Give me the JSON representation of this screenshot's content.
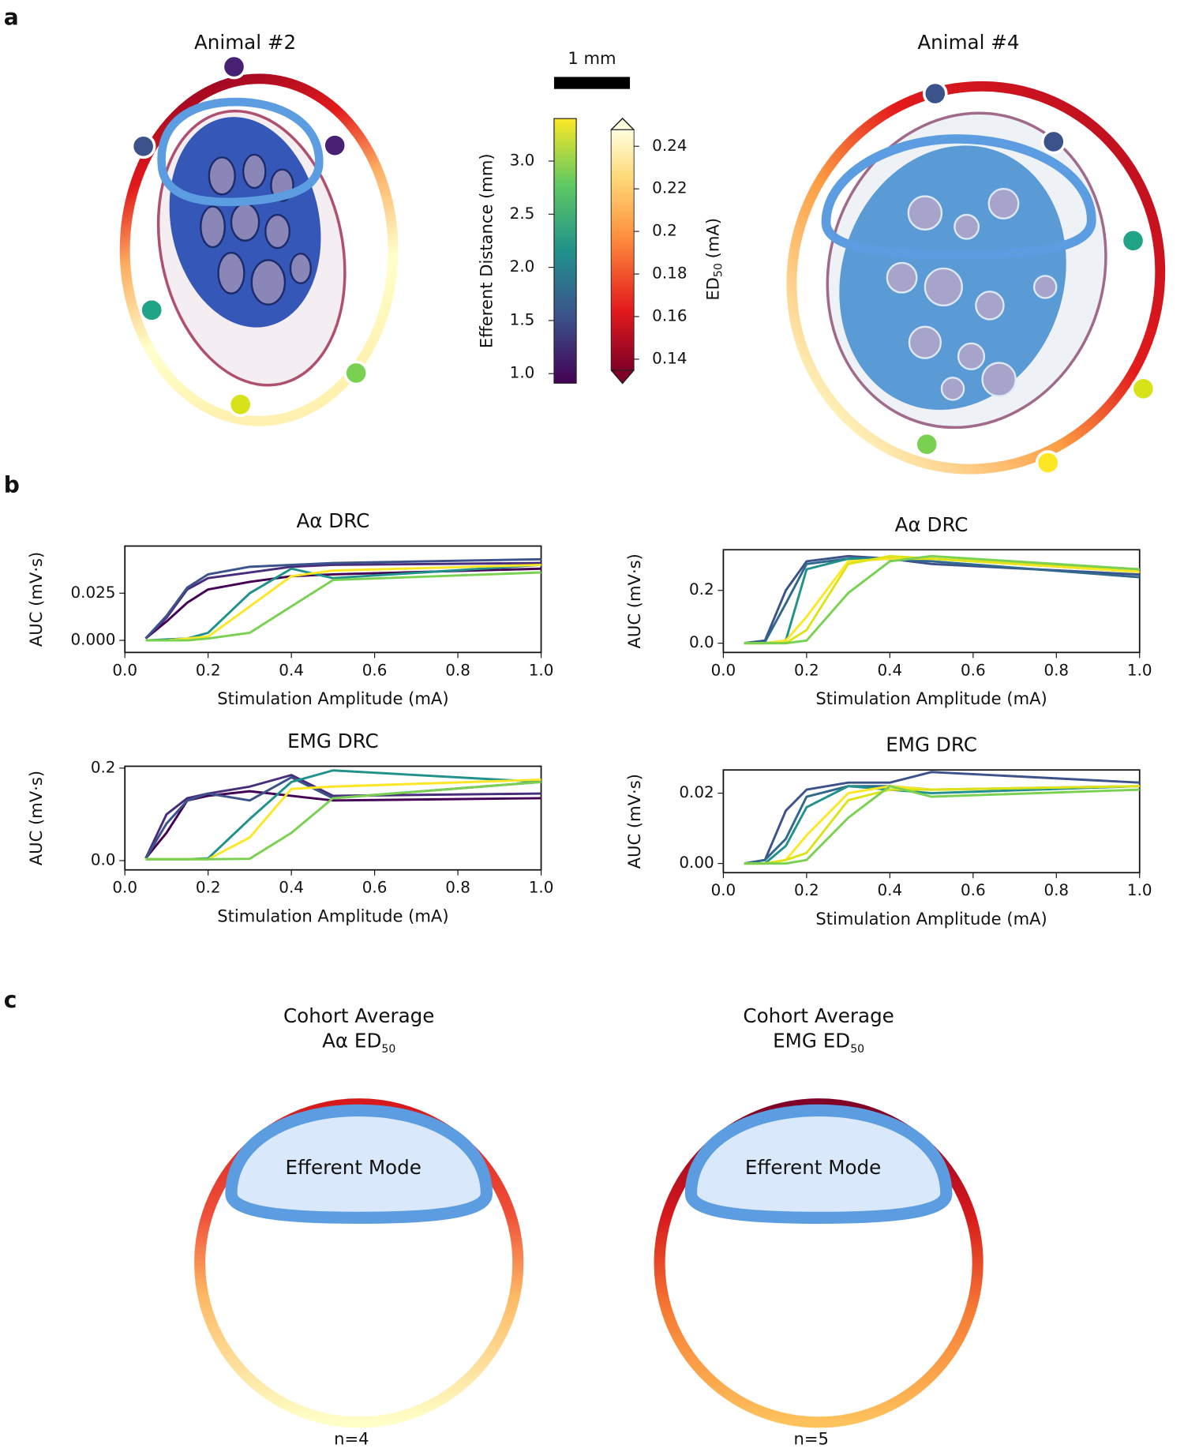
{
  "panel_labels": [
    "a",
    "b",
    "c"
  ],
  "panel_a": {
    "animals": [
      "Animal #2",
      "Animal #4"
    ],
    "scale_bar": "1 mm",
    "colorbars": [
      {
        "label": "Efferent Distance (mm)",
        "ylim": [
          0.91,
          3.4
        ],
        "ticks": [
          {
            "value": 1,
            "label": "1.0"
          },
          1.5,
          {
            "value": 2,
            "label": "2.0"
          },
          2.5,
          {
            "value": 3,
            "label": "3.0"
          }
        ]
      },
      {
        "label_main": "ED",
        "label_sub": "50",
        "label_unit": "(mA)",
        "ylim": [
          0.1348,
          0.2478
        ],
        "ticks": [
          0.14,
          0.16,
          0.18,
          0.2,
          0.22,
          0.24
        ]
      }
    ]
  },
  "chart_data": [
    {
      "type": "line",
      "title": "Aα DRC",
      "xlabel": "Stimulation Amplitude (mA)",
      "ylabel": "AUC (mV·s)",
      "x": [
        0.05,
        0.1,
        0.15,
        0.2,
        0.3,
        0.4,
        0.5,
        1.0
      ],
      "xlim": [
        0,
        1
      ],
      "ylim": [
        -0.0064,
        0.05
      ],
      "xticks": [
        {
          "value": 0,
          "label": "0.0"
        },
        0.2,
        0.4,
        0.6,
        0.8,
        {
          "value": 1,
          "label": "1.0"
        }
      ],
      "yticks": [
        {
          "value": 0,
          "label": "0.000"
        },
        0.025
      ],
      "series": [
        {
          "color": "#440154",
          "values": [
            0.001,
            0.01,
            0.02,
            0.027,
            0.031,
            0.034,
            0.035,
            0.038
          ]
        },
        {
          "color": "#472d7b",
          "values": [
            0.001,
            0.012,
            0.027,
            0.033,
            0.036,
            0.039,
            0.04,
            0.041
          ]
        },
        {
          "color": "#3b528b",
          "values": [
            0.001,
            0.013,
            0.028,
            0.035,
            0.039,
            0.04,
            0.041,
            0.043
          ]
        },
        {
          "color": "#21918c",
          "values": [
            0,
            0.0005,
            0.001,
            0.004,
            0.025,
            0.038,
            0.033,
            0.04
          ]
        },
        {
          "color": "#fde725",
          "values": [
            0,
            0,
            0.001,
            0.002,
            0.018,
            0.034,
            0.037,
            0.04
          ]
        },
        {
          "color": "#7ad151",
          "values": [
            0,
            0,
            0,
            0.001,
            0.004,
            0.018,
            0.032,
            0.036
          ]
        }
      ]
    },
    {
      "type": "line",
      "title": "Aα DRC",
      "xlabel": "Stimulation Amplitude (mA)",
      "ylabel": "AUC (mV·s)",
      "x": [
        0.05,
        0.1,
        0.15,
        0.2,
        0.3,
        0.4,
        0.5,
        1.0
      ],
      "xlim": [
        0,
        1
      ],
      "ylim": [
        -0.035,
        0.354
      ],
      "xticks": [
        {
          "value": 0,
          "label": "0.0"
        },
        0.2,
        0.4,
        0.6,
        0.8,
        {
          "value": 1,
          "label": "1.0"
        }
      ],
      "yticks": [
        {
          "value": 0,
          "label": "0.0"
        },
        0.2
      ],
      "series": [
        {
          "color": "#3b528b",
          "values": [
            0,
            0.01,
            0.2,
            0.31,
            0.33,
            0.32,
            0.3,
            0.26
          ]
        },
        {
          "color": "#31688e",
          "values": [
            0,
            0.005,
            0.15,
            0.3,
            0.32,
            0.32,
            0.31,
            0.25
          ]
        },
        {
          "color": "#21918c",
          "values": [
            0,
            0,
            0.01,
            0.28,
            0.32,
            0.32,
            0.32,
            0.27
          ]
        },
        {
          "color": "#fde725",
          "values": [
            0,
            0,
            0.01,
            0.1,
            0.31,
            0.32,
            0.32,
            0.27
          ]
        },
        {
          "color": "#dde318",
          "values": [
            0,
            0,
            0,
            0.05,
            0.3,
            0.33,
            0.32,
            0.28
          ]
        },
        {
          "color": "#7ad151",
          "values": [
            0,
            0,
            0,
            0.01,
            0.19,
            0.31,
            0.33,
            0.28
          ]
        }
      ]
    },
    {
      "type": "line",
      "title": "EMG DRC",
      "xlabel": "Stimulation Amplitude (mA)",
      "ylabel": "AUC (mV·s)",
      "x": [
        0.05,
        0.1,
        0.15,
        0.2,
        0.3,
        0.4,
        0.5,
        1.0
      ],
      "xlim": [
        0,
        1
      ],
      "ylim": [
        -0.02,
        0.204
      ],
      "xticks": [
        {
          "value": 0,
          "label": "0.0"
        },
        0.2,
        0.4,
        0.6,
        0.8,
        {
          "value": 1,
          "label": "1.0"
        }
      ],
      "yticks": [
        {
          "value": 0,
          "label": "0.0"
        },
        0.2
      ],
      "series": [
        {
          "color": "#440154",
          "values": [
            0.005,
            0.06,
            0.13,
            0.14,
            0.15,
            0.14,
            0.13,
            0.135
          ]
        },
        {
          "color": "#472d7b",
          "values": [
            0.005,
            0.1,
            0.135,
            0.145,
            0.16,
            0.185,
            0.14,
            0.145
          ]
        },
        {
          "color": "#3b528b",
          "values": [
            0.005,
            0.08,
            0.13,
            0.145,
            0.13,
            0.18,
            0.135,
            0.17
          ]
        },
        {
          "color": "#21918c",
          "values": [
            0.003,
            0.003,
            0.003,
            0.005,
            0.09,
            0.17,
            0.195,
            0.17
          ]
        },
        {
          "color": "#fde725",
          "values": [
            0.003,
            0.003,
            0.003,
            0.003,
            0.05,
            0.155,
            0.16,
            0.175
          ]
        },
        {
          "color": "#7ad151",
          "values": [
            0.003,
            0.003,
            0.003,
            0.003,
            0.004,
            0.06,
            0.135,
            0.17
          ]
        }
      ]
    },
    {
      "type": "line",
      "title": "EMG DRC",
      "xlabel": "Stimulation Amplitude (mA)",
      "ylabel": "AUC (mV·s)",
      "x": [
        0.05,
        0.1,
        0.15,
        0.2,
        0.3,
        0.4,
        0.5,
        1.0
      ],
      "xlim": [
        0,
        1
      ],
      "ylim": [
        -0.0026,
        0.0266
      ],
      "xticks": [
        {
          "value": 0,
          "label": "0.0"
        },
        0.2,
        0.4,
        0.6,
        0.8,
        {
          "value": 1,
          "label": "1.0"
        }
      ],
      "yticks": [
        {
          "value": 0,
          "label": "0.00"
        },
        {
          "value": 0.02,
          "label": "0.02"
        }
      ],
      "series": [
        {
          "color": "#3b528b",
          "values": [
            0,
            0.001,
            0.015,
            0.021,
            0.023,
            0.023,
            0.026,
            0.023
          ]
        },
        {
          "color": "#31688e",
          "values": [
            0,
            0.001,
            0.007,
            0.019,
            0.022,
            0.022,
            0.021,
            0.022
          ]
        },
        {
          "color": "#21918c",
          "values": [
            0,
            0,
            0.005,
            0.016,
            0.022,
            0.021,
            0.02,
            0.022
          ]
        },
        {
          "color": "#fde725",
          "values": [
            0,
            0,
            0.001,
            0.008,
            0.02,
            0.022,
            0.021,
            0.022
          ]
        },
        {
          "color": "#dde318",
          "values": [
            0,
            0,
            0.001,
            0.003,
            0.018,
            0.021,
            0.021,
            0.022
          ]
        },
        {
          "color": "#7ad151",
          "values": [
            0,
            0,
            0,
            0.001,
            0.013,
            0.022,
            0.019,
            0.021
          ]
        }
      ]
    }
  ],
  "panel_c": [
    {
      "title": "Cohort Average",
      "mode": "Aα ED",
      "sub": "50",
      "region": "Efferent Mode",
      "n": "n=4"
    },
    {
      "title": "Cohort Average",
      "mode": "EMG ED",
      "sub": "50",
      "region": "Efferent Mode",
      "n": "n=5"
    }
  ]
}
